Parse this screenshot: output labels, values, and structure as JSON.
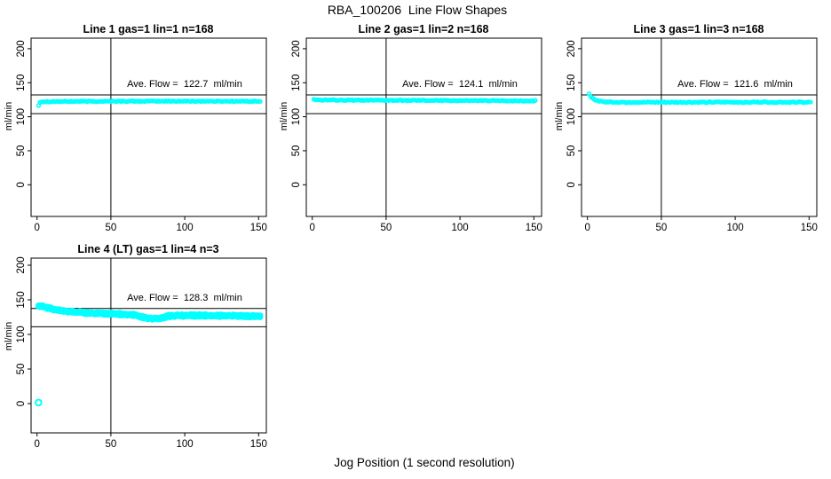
{
  "page": {
    "title": "RBA_100206  Line Flow Shapes",
    "xlabel": "Jog Position (1 second resolution)"
  },
  "colors": {
    "points": "#00ffff",
    "axis": "#000000",
    "background": "#ffffff"
  },
  "axes": {
    "ylabel": "ml/min",
    "x_ticks": [
      0,
      50,
      100,
      150
    ],
    "y_ticks": [
      0,
      50,
      100,
      150,
      200
    ],
    "x_range": [
      -4,
      157
    ],
    "y_range": [
      -47,
      215
    ]
  },
  "chart_data": [
    {
      "type": "scatter",
      "title": "Line 1 gas=1 lin=1 n=168",
      "line_number": 1,
      "gas": 1,
      "lin": 1,
      "n": 168,
      "ave_flow": 122.7,
      "ave_flow_label": "Ave. Flow =  122.7  ml/min",
      "vline_x": 50,
      "hlines": [
        132,
        104.5
      ],
      "noise": 0.7,
      "marker_r": 1.9,
      "passes": 1,
      "profile_keypoints": [
        [
          1,
          116.5
        ],
        [
          2,
          121.8
        ],
        [
          4,
          122.2
        ],
        [
          10,
          122.4
        ],
        [
          30,
          122.6
        ],
        [
          60,
          122.8
        ],
        [
          100,
          122.9
        ],
        [
          151,
          122.7
        ]
      ],
      "outliers": []
    },
    {
      "type": "scatter",
      "title": "Line 2 gas=1 lin=2 n=168",
      "line_number": 2,
      "gas": 1,
      "lin": 2,
      "n": 168,
      "ave_flow": 124.1,
      "ave_flow_label": "Ave. Flow =  124.1  ml/min",
      "vline_x": 50,
      "hlines": [
        132,
        104.5
      ],
      "noise": 0.7,
      "marker_r": 1.9,
      "passes": 1,
      "profile_keypoints": [
        [
          1,
          126.2
        ],
        [
          2,
          125.0
        ],
        [
          5,
          124.6
        ],
        [
          15,
          124.4
        ],
        [
          40,
          124.2
        ],
        [
          80,
          123.9
        ],
        [
          120,
          123.6
        ],
        [
          151,
          123.3
        ]
      ],
      "outliers": []
    },
    {
      "type": "scatter",
      "title": "Line 3 gas=1 lin=3 n=168",
      "line_number": 3,
      "gas": 1,
      "lin": 3,
      "n": 168,
      "ave_flow": 121.6,
      "ave_flow_label": "Ave. Flow =  121.6  ml/min",
      "vline_x": 50,
      "hlines": [
        132,
        104.5
      ],
      "noise": 0.8,
      "marker_r": 1.9,
      "passes": 1,
      "profile_keypoints": [
        [
          1,
          133
        ],
        [
          2,
          129.5
        ],
        [
          3,
          127.5
        ],
        [
          4,
          126
        ],
        [
          6,
          124.3
        ],
        [
          9,
          122.8
        ],
        [
          13,
          121.9
        ],
        [
          20,
          121.4
        ],
        [
          40,
          121.2
        ],
        [
          80,
          121.3
        ],
        [
          120,
          121.5
        ],
        [
          151,
          121.3
        ]
      ],
      "outliers": []
    },
    {
      "type": "scatter",
      "title": "Line 4 (LT) gas=1 lin=4 n=3",
      "line_number": 4,
      "gas": 1,
      "lin": 4,
      "n": 3,
      "ave_flow": 128.3,
      "ave_flow_label": "Ave. Flow =  128.3  ml/min",
      "vline_x": 50,
      "hlines": [
        137.5,
        111
      ],
      "noise": 1.0,
      "marker_r": 2.5,
      "passes": 3,
      "profile_keypoints": [
        [
          2,
          141
        ],
        [
          4,
          140.5
        ],
        [
          7,
          138.5
        ],
        [
          10,
          136.8
        ],
        [
          14,
          135
        ],
        [
          20,
          133.6
        ],
        [
          28,
          132
        ],
        [
          36,
          131
        ],
        [
          45,
          130.2
        ],
        [
          55,
          129.4
        ],
        [
          63,
          128.6
        ],
        [
          68,
          127.5
        ],
        [
          71,
          125
        ],
        [
          74,
          123.6
        ],
        [
          78,
          123
        ],
        [
          83,
          123
        ],
        [
          86,
          124.8
        ],
        [
          89,
          126.6
        ],
        [
          95,
          127.2
        ],
        [
          110,
          127.3
        ],
        [
          125,
          127
        ],
        [
          140,
          126.6
        ],
        [
          151,
          126.2
        ]
      ],
      "outliers": [
        [
          1,
          1.5
        ]
      ]
    }
  ]
}
